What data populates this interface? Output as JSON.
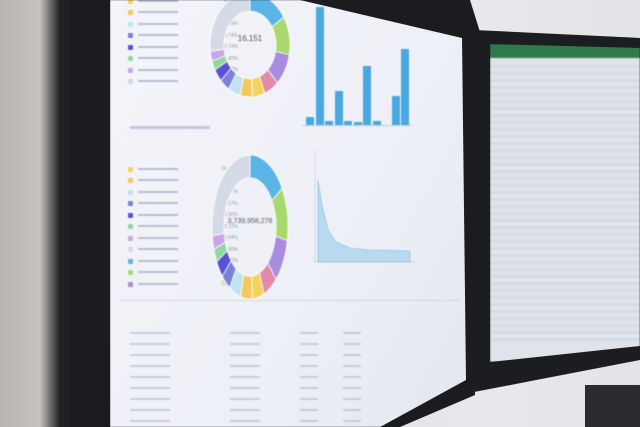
{
  "main_screen": {
    "donut_top": {
      "center_value": "16,151",
      "legend_percents": [
        "6.40%",
        "4.50%",
        "4.16%",
        "3.74%",
        "3.74%",
        "2.40%",
        "2.67%",
        "26.29%"
      ],
      "colors": [
        "#5ab4e6",
        "#a8d86e",
        "#a98be0",
        "#e48aa8",
        "#f2d45a",
        "#f4c860",
        "#bfe3f0",
        "#7a82d8",
        "#5a4fd6",
        "#8fd9a0",
        "#c9a4e8",
        "#d4dbe6"
      ]
    },
    "donut_bottom": {
      "center_value": "3,739,958,276",
      "legend_percents": [
        "24.40%",
        "9.40%",
        "8.52%",
        "7.17%",
        "4.36%",
        "3.72%",
        "3.04%",
        "2.90%",
        "2.66%",
        "2.50%",
        "22.27%"
      ]
    },
    "bar_chart": {
      "values": [
        1,
        14,
        0.5,
        4,
        0.5,
        0.3,
        7,
        0.5,
        0,
        3.5,
        9
      ],
      "color": "#4aa8e0"
    },
    "area_chart": {
      "color": "#9fcbe8"
    }
  },
  "right_screen": {
    "header_color": "#2f7a4a"
  }
}
